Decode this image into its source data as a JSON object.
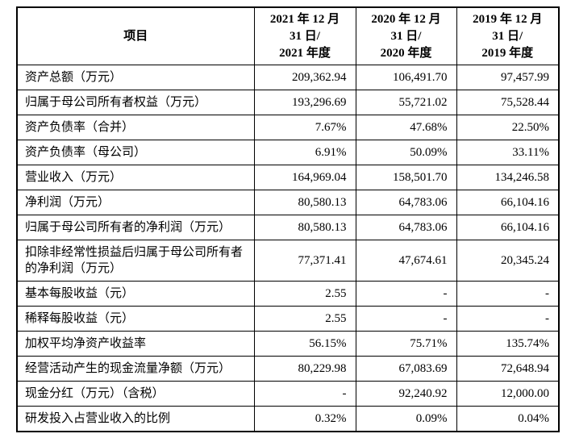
{
  "table": {
    "header": [
      "项目",
      "2021 年 12 月\n31 日/\n2021 年度",
      "2020 年 12 月\n31 日/\n2020 年度",
      "2019 年 12 月\n31 日/\n2019 年度"
    ],
    "rows": [
      {
        "label": "资产总额（万元）",
        "values": [
          "209,362.94",
          "106,491.70",
          "97,457.99"
        ]
      },
      {
        "label": "归属于母公司所有者权益（万元）",
        "values": [
          "193,296.69",
          "55,721.02",
          "75,528.44"
        ]
      },
      {
        "label": "资产负债率（合并）",
        "values": [
          "7.67%",
          "47.68%",
          "22.50%"
        ]
      },
      {
        "label": "资产负债率（母公司）",
        "values": [
          "6.91%",
          "50.09%",
          "33.11%"
        ]
      },
      {
        "label": "营业收入（万元）",
        "values": [
          "164,969.04",
          "158,501.70",
          "134,246.58"
        ]
      },
      {
        "label": "净利润（万元）",
        "values": [
          "80,580.13",
          "64,783.06",
          "66,104.16"
        ]
      },
      {
        "label": "归属于母公司所有者的净利润（万元）",
        "values": [
          "80,580.13",
          "64,783.06",
          "66,104.16"
        ]
      },
      {
        "label": "扣除非经常性损益后归属于母公司所有者的净利润（万元）",
        "values": [
          "77,371.41",
          "47,674.61",
          "20,345.24"
        ]
      },
      {
        "label": "基本每股收益（元）",
        "values": [
          "2.55",
          "-",
          "-"
        ]
      },
      {
        "label": "稀释每股收益（元）",
        "values": [
          "2.55",
          "-",
          "-"
        ]
      },
      {
        "label": "加权平均净资产收益率",
        "values": [
          "56.15%",
          "75.71%",
          "135.74%"
        ]
      },
      {
        "label": "经营活动产生的现金流量净额（万元）",
        "values": [
          "80,229.98",
          "67,083.69",
          "72,648.94"
        ]
      },
      {
        "label": "现金分红（万元）（含税）",
        "values": [
          "-",
          "92,240.92",
          "12,000.00"
        ]
      },
      {
        "label": "研发投入占营业收入的比例",
        "values": [
          "0.32%",
          "0.09%",
          "0.04%"
        ]
      }
    ]
  }
}
